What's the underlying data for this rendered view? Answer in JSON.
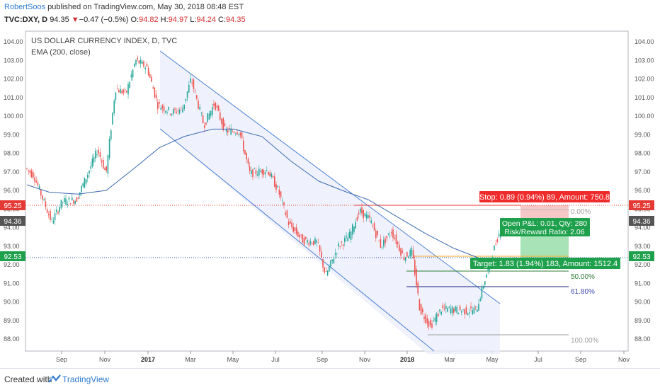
{
  "header": {
    "author": "RobertSoos",
    "published_text": "published on TradingView.com, May 30, 2018 08:48 EST",
    "symbol": "TVC:DXY, D",
    "last": "94.35",
    "change_arrow": "▼",
    "change": "−0.47 (−0.5%)",
    "open_label": "O:",
    "open": "94.82",
    "high_label": "H:",
    "high": "94.97",
    "low_label": "L:",
    "low": "94.24",
    "close_label": "C:",
    "close": "94.35"
  },
  "legend": {
    "title": "US DOLLAR CURRENCY INDEX, D, TVC",
    "indicator": "EMA (200, close)"
  },
  "axis": {
    "y_ticks": [
      "104.00",
      "103.00",
      "102.00",
      "101.00",
      "100.00",
      "99.00",
      "98.00",
      "97.00",
      "96.00",
      "95.00",
      "94.00",
      "93.00",
      "92.00",
      "91.00",
      "90.00",
      "89.00",
      "88.00"
    ],
    "x_ticks": [
      "Sep",
      "Nov",
      "2017",
      "Mar",
      "May",
      "Jul",
      "Sep",
      "Nov",
      "2018",
      "Mar",
      "May",
      "Jul",
      "Sep",
      "Nov"
    ]
  },
  "price_badges": {
    "left_upper": "95.25",
    "left_mid": "94.36",
    "left_lower": "92.53",
    "right_upper": "95.25",
    "right_mid": "94.36",
    "right_lower": "92.53"
  },
  "trade": {
    "stop_label": "Stop: 0.89 (0.94%) 89, Amount: 750.8",
    "pnl_label": "Open P&L: 0.01, Qty: 280",
    "rr_label": "Risk/Reward Ratio: 2.06",
    "target_label": "Target: 1.83 (1.94%) 183, Amount: 1512.4"
  },
  "fib": {
    "l0": "0.00%",
    "l50": "50.00%",
    "l618": "61.80%",
    "l100": "100.00%"
  },
  "footer": {
    "created": "Created with",
    "brand": "TradingView"
  },
  "colors": {
    "up": "#26a69a",
    "down": "#ef5350",
    "channel": "#3d7ad6",
    "ema": "#3a6ab0",
    "stop_bg": "#ef2b2b",
    "target_bg": "#1ea04c",
    "fib_618": "#1a237e"
  }
}
